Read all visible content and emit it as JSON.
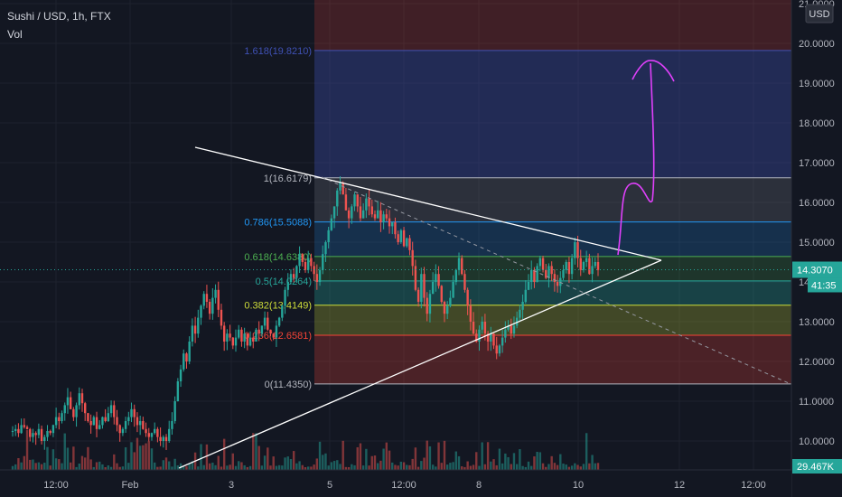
{
  "header": {
    "symbol": "Sushi / USD, 1h, FTX",
    "volume_label": "Vol"
  },
  "chart_data": {
    "type": "candlestick",
    "symbol": "Sushi / USD",
    "interval": "1h",
    "exchange": "FTX",
    "ylim": [
      9.5,
      21.0
    ],
    "y_ticks": [
      "10.0000",
      "11.0000",
      "12.0000",
      "13.0000",
      "14.0000",
      "15.0000",
      "16.0000",
      "17.0000",
      "18.0000",
      "19.0000",
      "20.0000",
      "21.0000"
    ],
    "y_currency": "USD",
    "x_ticks": [
      "12:00",
      "Feb",
      "3",
      "5",
      "12:00",
      "8",
      "10",
      "12",
      "12:00"
    ],
    "last_price": "14.3070",
    "countdown": "41:35",
    "volume_last": "29.467K",
    "fib_levels": [
      {
        "ratio": "1.618",
        "price": 19.821,
        "label": "1.618(19.8210)",
        "color": "#3f51b5"
      },
      {
        "ratio": "1",
        "price": 16.6179,
        "label": "1(16.6179)",
        "color": "#b2b5be"
      },
      {
        "ratio": "0.786",
        "price": 15.5088,
        "label": "0.786(15.5088)",
        "color": "#2196f3"
      },
      {
        "ratio": "0.618",
        "price": 14.638,
        "label": "0.618(14.6380)",
        "color": "#4caf50"
      },
      {
        "ratio": "0.5",
        "price": 14.0264,
        "label": "0.5(14.0264)",
        "color": "#26a69a"
      },
      {
        "ratio": "0.382",
        "price": 13.4149,
        "label": "0.382(13.4149)",
        "color": "#cddc39"
      },
      {
        "ratio": "0.236",
        "price": 12.6581,
        "label": "0.236(12.6581)",
        "color": "#f44336"
      },
      {
        "ratio": "0",
        "price": 11.435,
        "label": "0(11.4350)",
        "color": "#b2b5be"
      }
    ],
    "ohlc_closes": [
      10.25,
      10.3,
      10.2,
      10.4,
      10.35,
      10.3,
      10.1,
      10.2,
      10.15,
      10.3,
      10.0,
      10.1,
      10.25,
      10.2,
      10.4,
      10.6,
      10.5,
      10.7,
      10.9,
      11.1,
      10.8,
      10.6,
      10.9,
      11.2,
      10.95,
      10.7,
      10.5,
      10.4,
      10.6,
      10.3,
      10.4,
      10.6,
      10.5,
      10.7,
      10.9,
      10.6,
      10.4,
      10.2,
      10.3,
      10.5,
      10.6,
      10.8,
      10.6,
      10.4,
      10.5,
      10.3,
      10.2,
      10.1,
      10.2,
      10.3,
      10.1,
      10.0,
      10.1,
      10.0,
      10.3,
      10.5,
      11.0,
      11.5,
      11.8,
      12.2,
      12.0,
      12.5,
      12.9,
      12.7,
      13.1,
      13.4,
      13.7,
      13.5,
      13.2,
      13.6,
      13.8,
      13.3,
      12.9,
      12.5,
      12.7,
      12.6,
      12.4,
      12.6,
      12.8,
      12.5,
      12.7,
      12.4,
      12.6,
      12.5,
      12.8,
      12.7,
      12.9,
      13.1,
      12.8,
      12.7,
      12.6,
      12.9,
      13.1,
      13.4,
      13.8,
      14.0,
      14.2,
      14.1,
      14.4,
      14.7,
      14.5,
      14.3,
      14.6,
      14.4,
      14.2,
      14.0,
      14.3,
      14.7,
      15.0,
      15.3,
      15.6,
      15.9,
      16.3,
      16.5,
      16.2,
      15.8,
      15.6,
      15.9,
      16.2,
      15.9,
      15.6,
      15.8,
      16.1,
      15.9,
      15.7,
      15.6,
      15.8,
      15.5,
      15.7,
      15.6,
      15.4,
      15.5,
      15.2,
      15.0,
      15.3,
      14.9,
      15.1,
      14.8,
      14.4,
      13.8,
      13.5,
      14.2,
      13.6,
      13.2,
      13.7,
      14.0,
      14.2,
      13.9,
      13.5,
      13.2,
      13.4,
      13.6,
      14.0,
      14.3,
      14.6,
      14.2,
      13.8,
      13.4,
      13.0,
      12.7,
      12.5,
      12.8,
      13.0,
      12.7,
      12.5,
      12.7,
      12.4,
      12.2,
      12.4,
      12.6,
      12.8,
      12.9,
      12.7,
      12.9,
      13.1,
      13.3,
      13.5,
      13.8,
      14.0,
      14.3,
      14.0,
      14.4,
      14.6,
      14.3,
      14.1,
      14.4,
      14.2,
      14.0,
      13.9,
      14.1,
      14.3,
      14.5,
      14.2,
      14.6,
      15.0,
      14.6,
      14.3,
      14.5,
      14.6,
      14.2,
      14.4,
      14.5,
      14.3
    ],
    "annotations": [
      "symmetrical triangle trendlines",
      "dashed descending trendline",
      "hand-drawn projection arrow"
    ]
  }
}
